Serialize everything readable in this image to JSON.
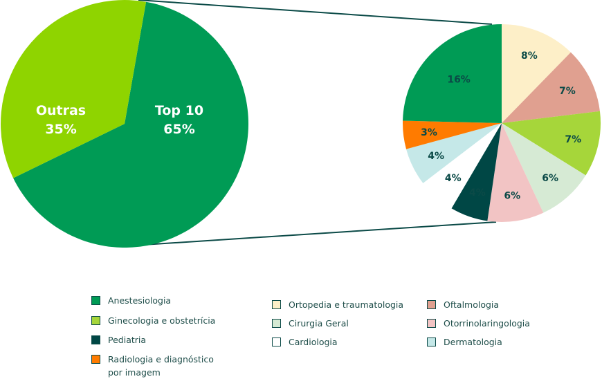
{
  "chart_data": [
    {
      "type": "pie",
      "slices": [
        {
          "label": "Top 10",
          "value": 65,
          "value_label": "65%",
          "color": "#009b55",
          "text_color": "#ffffff"
        },
        {
          "label": "Outras",
          "value": 35,
          "value_label": "35%",
          "color": "#8fd400",
          "text_color": "#ffffff"
        }
      ]
    },
    {
      "type": "pie",
      "slices": [
        {
          "label": "Ortopedia e traumatologia",
          "value": 8,
          "value_label": "8%",
          "color": "#fdefc8"
        },
        {
          "label": "Oftalmologia",
          "value": 7,
          "value_label": "7%",
          "color": "#e0a090"
        },
        {
          "label": "Ginecologia e obstetrícia",
          "value": 7,
          "value_label": "7%",
          "color": "#a6d63a"
        },
        {
          "label": "Cirurgia Geral",
          "value": 6,
          "value_label": "6%",
          "color": "#d6ead4"
        },
        {
          "label": "Otorrinolaringologia",
          "value": 6,
          "value_label": "6%",
          "color": "#f2c4c4"
        },
        {
          "label": "Pediatria",
          "value": 4,
          "value_label": "4%",
          "color": "#004745"
        },
        {
          "label": "Cardiologia",
          "value": 4,
          "value_label": "4%",
          "color": "#ffffff"
        },
        {
          "label": "Dermatologia",
          "value": 4,
          "value_label": "4%",
          "color": "#c5e8e8"
        },
        {
          "label": "Radiologia e diagnóstico\npor imagem",
          "value": 3,
          "value_label": "3%",
          "color": "#ff7b00"
        },
        {
          "label": "Anestesiologia",
          "value": 16,
          "value_label": "16%",
          "color": "#009b55"
        }
      ]
    }
  ],
  "legend": [
    {
      "label": "Anestesiologia",
      "color": "#009b55"
    },
    {
      "label": "Ginecologia e obstetrícia",
      "color": "#a6d63a"
    },
    {
      "label": "Pediatria",
      "color": "#004745"
    },
    {
      "label": "Radiologia e diagnóstico\npor imagem",
      "color": "#ff7b00"
    },
    {
      "label": "Ortopedia e traumatologia",
      "color": "#fdefc8"
    },
    {
      "label": "Cirurgia Geral",
      "color": "#d6ead4"
    },
    {
      "label": "Cardiologia",
      "color": "#ffffff"
    },
    {
      "label": "Oftalmologia",
      "color": "#e0a090"
    },
    {
      "label": "Otorrinolaringologia",
      "color": "#f2c4c4"
    },
    {
      "label": "Dermatologia",
      "color": "#c5e8e8"
    }
  ],
  "colors": {
    "connector": "#0b4a47",
    "dark_text": "#0b4a47"
  }
}
